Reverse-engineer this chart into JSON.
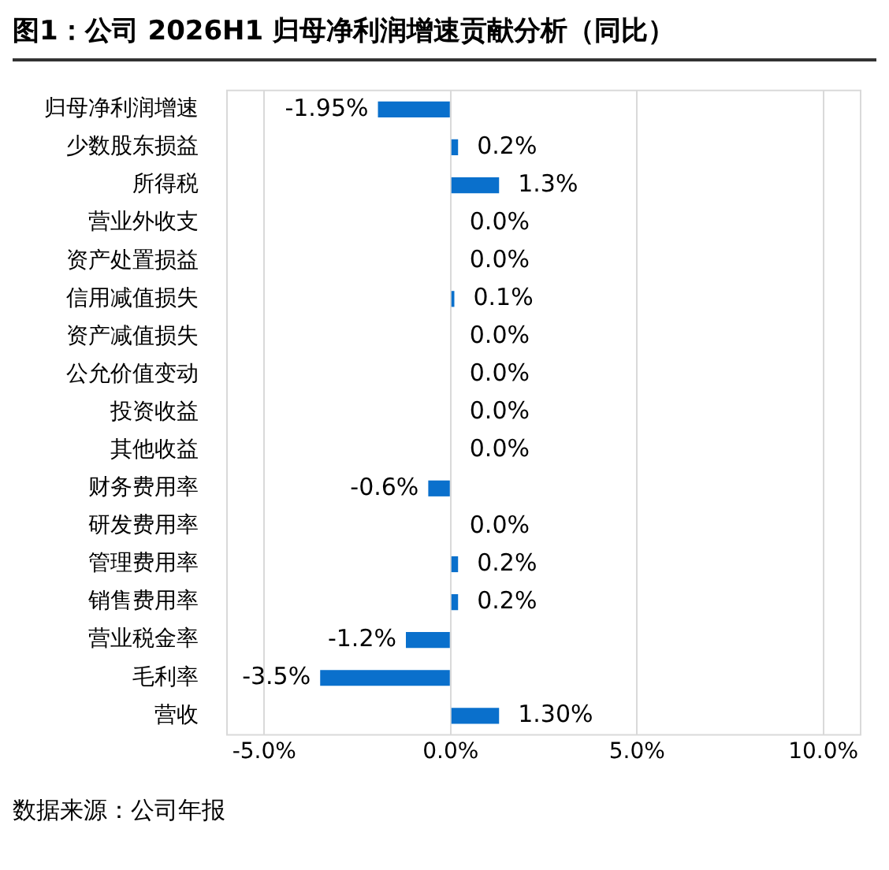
{
  "chart_data": {
    "type": "bar",
    "orientation": "horizontal",
    "title": "图1：公司 2026H1 归母净利润增速贡献分析（同比）",
    "categories": [
      "归母净利润增速",
      "少数股东损益",
      "所得税",
      "营业外收支",
      "资产处置损益",
      "信用减值损失",
      "资产减值损失",
      "公允价值变动",
      "投资收益",
      "其他收益",
      "财务费用率",
      "研发费用率",
      "管理费用率",
      "销售费用率",
      "营业税金率",
      "毛利率",
      "营收"
    ],
    "values": [
      -1.95,
      0.2,
      1.3,
      0,
      0,
      0.1,
      0,
      0,
      0,
      0,
      -0.6,
      0,
      0.2,
      0.2,
      -1.2,
      -3.5,
      1.3
    ],
    "value_labels": [
      "-1.95%",
      "0.2%",
      "1.3%",
      "0.0%",
      "0.0%",
      "0.1%",
      "0.0%",
      "0.0%",
      "0.0%",
      "0.0%",
      "-0.6%",
      "0.0%",
      "0.2%",
      "0.2%",
      "-1.2%",
      "-3.5%",
      "1.30%"
    ],
    "color": "#0a70cc",
    "xlim": [
      -6,
      11
    ],
    "xticks": [
      {
        "value": -5,
        "label": "-5.0%"
      },
      {
        "value": 0,
        "label": "0.0%"
      },
      {
        "value": 5,
        "label": "5.0%"
      },
      {
        "value": 10,
        "label": "10.0%"
      }
    ],
    "grid": "x",
    "legend": false,
    "annotations": [
      "数据来源：公司年报"
    ]
  }
}
